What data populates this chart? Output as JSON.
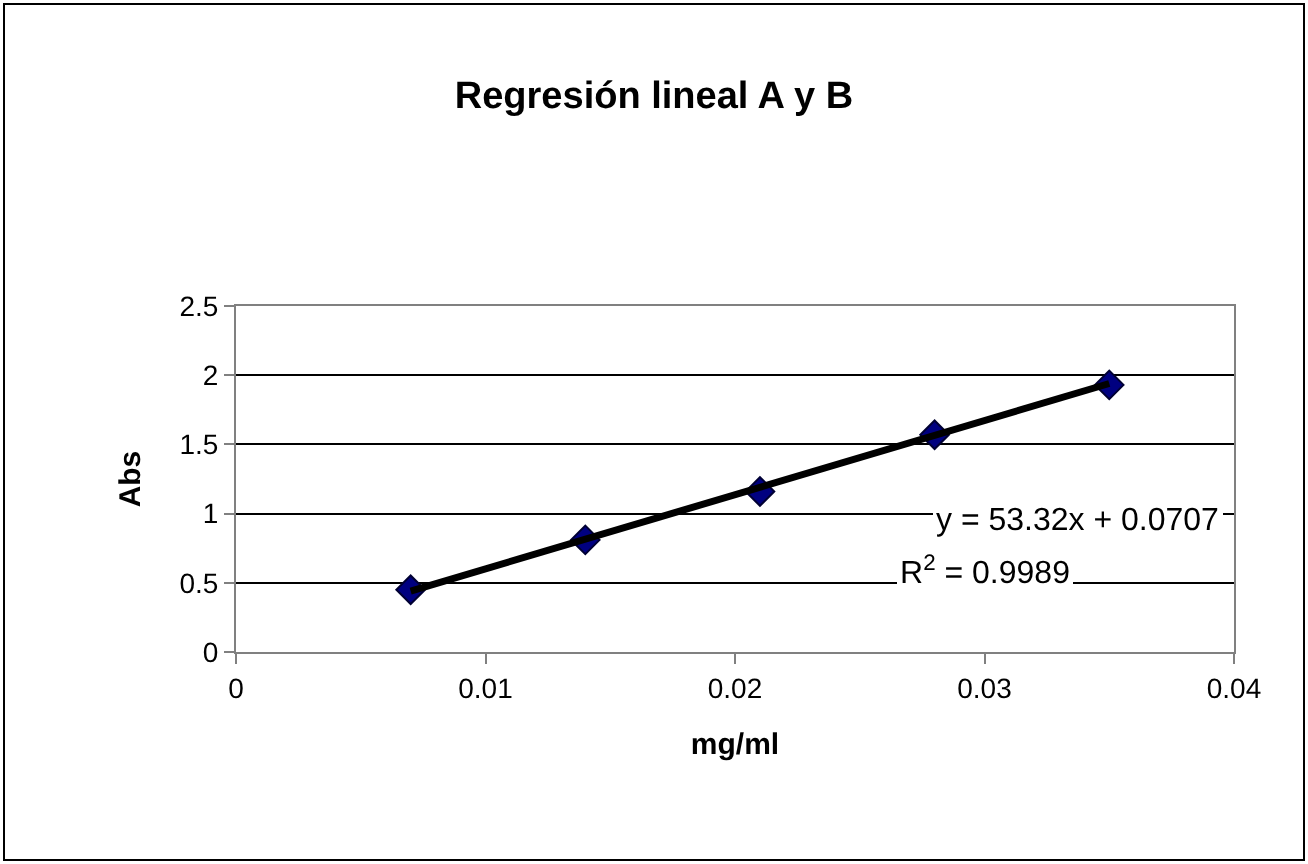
{
  "chart_data": {
    "type": "scatter",
    "title": "Regresión lineal A y B",
    "xlabel": "mg/ml",
    "ylabel": "Abs",
    "series": [
      {
        "color": "#000080",
        "marker": "diamond",
        "x": [
          0.007,
          0.014,
          0.021,
          0.028,
          0.035
        ],
        "values": [
          0.45,
          0.81,
          1.16,
          1.57,
          1.93
        ]
      },
      {
        "type": "line",
        "color": "#000000",
        "marker": "none",
        "line_style": "solid",
        "x": [
          0.007,
          0.035
        ],
        "values": [
          0.44,
          1.94
        ]
      }
    ],
    "annotations": [
      "y = 53.32x + 0.0707",
      "R$^{2}$ = 0.9989"
    ],
    "xlim": [
      0,
      0.04
    ],
    "xticks": [
      0,
      0.01,
      0.02,
      0.03,
      0.04
    ],
    "ylim": [
      0,
      2.5
    ],
    "yticks": [
      0,
      0.5,
      1,
      1.5,
      2,
      2.5
    ],
    "grid": "y"
  }
}
